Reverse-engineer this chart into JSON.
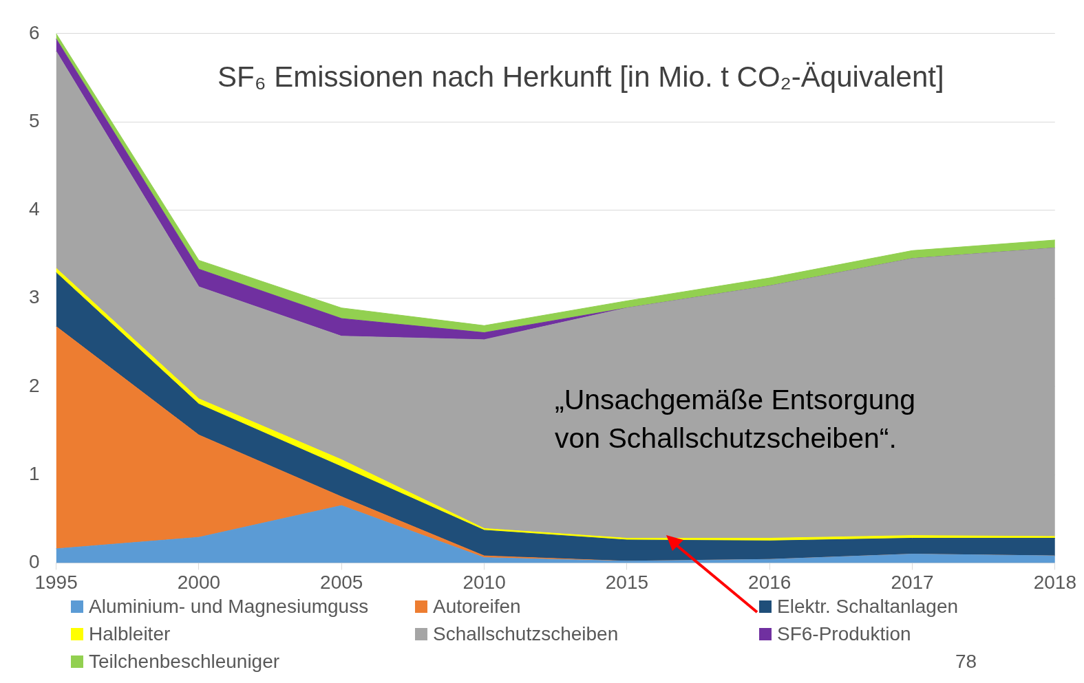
{
  "chart_data": {
    "type": "area",
    "stacked": true,
    "title": "SF₆ Emissionen nach Herkunft [in Mio. t CO₂-Äquivalent]",
    "categories": [
      "1995",
      "2000",
      "2005",
      "2010",
      "2015",
      "2016",
      "2017",
      "2018"
    ],
    "series": [
      {
        "name": "Aluminium- und Magnesiumguss",
        "color": "#5b9bd5",
        "values": [
          0.16,
          0.29,
          0.65,
          0.06,
          0.02,
          0.04,
          0.1,
          0.08
        ]
      },
      {
        "name": "Autoreifen",
        "color": "#ed7d31",
        "values": [
          2.52,
          1.16,
          0.1,
          0.02,
          0,
          0,
          0,
          0
        ]
      },
      {
        "name": "Elektr. Schaltanlagen",
        "color": "#1f4e79",
        "values": [
          0.61,
          0.35,
          0.34,
          0.29,
          0.24,
          0.21,
          0.18,
          0.2
        ]
      },
      {
        "name": "Halbleiter",
        "color": "#ffff00",
        "values": [
          0.05,
          0.06,
          0.08,
          0.02,
          0.02,
          0.03,
          0.03,
          0.02
        ]
      },
      {
        "name": "Schallschutzscheiben",
        "color": "#a5a5a5",
        "values": [
          2.46,
          1.27,
          1.4,
          2.14,
          2.61,
          2.86,
          3.14,
          3.27
        ]
      },
      {
        "name": "SF6-Produktion",
        "color": "#7030a0",
        "values": [
          0.14,
          0.2,
          0.2,
          0.08,
          0,
          0,
          0,
          0
        ]
      },
      {
        "name": "Teilchenbeschleuniger",
        "color": "#92d050",
        "values": [
          0.06,
          0.1,
          0.12,
          0.08,
          0.08,
          0.09,
          0.09,
          0.09
        ]
      }
    ],
    "ylim": [
      0,
      6
    ],
    "yticks": [
      0,
      1,
      2,
      3,
      4,
      5,
      6
    ],
    "grid": "y",
    "legend": "bottom",
    "annotations": [
      "„Unsachgemäße Entsorgung von Schallschutzscheiben“.",
      "78"
    ]
  }
}
